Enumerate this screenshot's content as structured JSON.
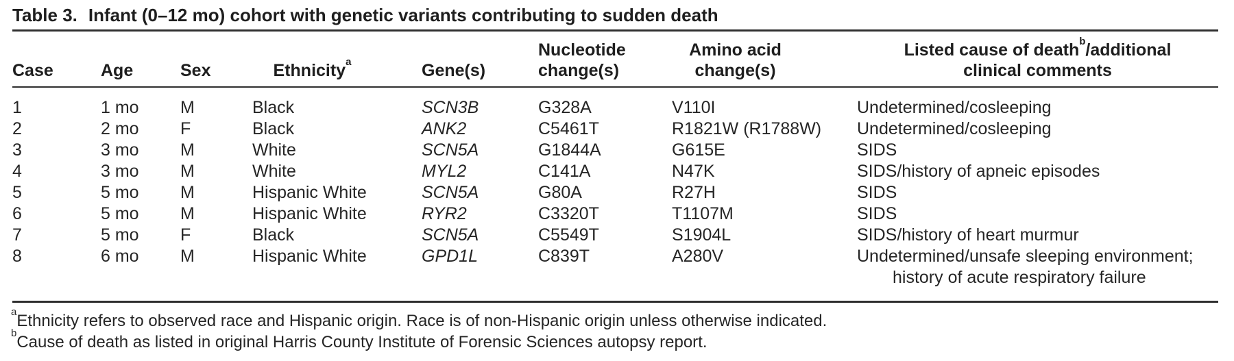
{
  "title": {
    "label": "Table 3.",
    "text": "Infant (0–12 mo) cohort with genetic variants contributing to sudden death"
  },
  "colors": {
    "text": "#262626",
    "rules": "#2f2f2f",
    "background": "#ffffff"
  },
  "table": {
    "columns": [
      {
        "key": "case",
        "header_lines": [
          [
            {
              "text": "Case"
            }
          ]
        ]
      },
      {
        "key": "age",
        "header_lines": [
          [
            {
              "text": "Age"
            }
          ]
        ]
      },
      {
        "key": "sex",
        "header_lines": [
          [
            {
              "text": "Sex"
            }
          ]
        ]
      },
      {
        "key": "ethnicity",
        "header_lines": [
          [
            {
              "text": "Ethnicity"
            },
            {
              "sup": "a"
            }
          ]
        ]
      },
      {
        "key": "gene",
        "header_lines": [
          [
            {
              "text": "Gene(s)"
            }
          ]
        ]
      },
      {
        "key": "nucleotide",
        "header_lines": [
          [
            {
              "text": "Nucleotide"
            }
          ],
          [
            {
              "text": "change(s)"
            }
          ]
        ]
      },
      {
        "key": "amino",
        "header_lines": [
          [
            {
              "text": "Amino acid"
            }
          ],
          [
            {
              "text": "change(s)"
            }
          ]
        ]
      },
      {
        "key": "cause",
        "header_lines": [
          [
            {
              "text": "Listed cause of death"
            },
            {
              "sup": "b"
            },
            {
              "text": "/additional"
            }
          ],
          [
            {
              "text": "clinical comments"
            }
          ]
        ]
      }
    ],
    "rows": [
      {
        "case": "1",
        "age": "1 mo",
        "sex": "M",
        "ethnicity": "Black",
        "gene": "SCN3B",
        "nucleotide": "G328A",
        "amino": "V110I",
        "cause": "Undetermined/cosleeping"
      },
      {
        "case": "2",
        "age": "2 mo",
        "sex": "F",
        "ethnicity": "Black",
        "gene": "ANK2",
        "nucleotide": "C5461T",
        "amino": "R1821W (R1788W)",
        "cause": "Undetermined/cosleeping"
      },
      {
        "case": "3",
        "age": "3 mo",
        "sex": "M",
        "ethnicity": "White",
        "gene": "SCN5A",
        "nucleotide": "G1844A",
        "amino": "G615E",
        "cause": "SIDS"
      },
      {
        "case": "4",
        "age": "3 mo",
        "sex": "M",
        "ethnicity": "White",
        "gene": "MYL2",
        "nucleotide": "C141A",
        "amino": "N47K",
        "cause": "SIDS/history of apneic episodes"
      },
      {
        "case": "5",
        "age": "5 mo",
        "sex": "M",
        "ethnicity": "Hispanic White",
        "gene": "SCN5A",
        "nucleotide": "G80A",
        "amino": "R27H",
        "cause": "SIDS"
      },
      {
        "case": "6",
        "age": "5 mo",
        "sex": "M",
        "ethnicity": "Hispanic White",
        "gene": "RYR2",
        "nucleotide": "C3320T",
        "amino": "T1107M",
        "cause": "SIDS"
      },
      {
        "case": "7",
        "age": "5 mo",
        "sex": "F",
        "ethnicity": "Black",
        "gene": "SCN5A",
        "nucleotide": "C5549T",
        "amino": "S1904L",
        "cause": "SIDS/history of heart murmur"
      },
      {
        "case": "8",
        "age": "6 mo",
        "sex": "M",
        "ethnicity": "Hispanic White",
        "gene": "GPD1L",
        "nucleotide": "C839T",
        "amino": "A280V",
        "cause": [
          "Undetermined/unsafe sleeping environment;",
          "history of acute respiratory failure"
        ]
      }
    ]
  },
  "footnotes": [
    {
      "marker": "a",
      "text": "Ethnicity refers to observed race and Hispanic origin. Race is of non-Hispanic origin unless otherwise indicated."
    },
    {
      "marker": "b",
      "text": "Cause of death as listed in original Harris County Institute of Forensic Sciences autopsy report."
    }
  ]
}
